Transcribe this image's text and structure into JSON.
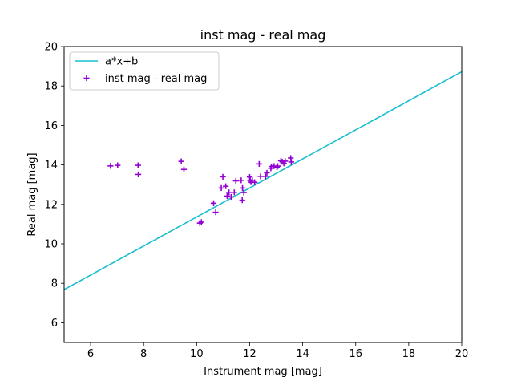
{
  "chart_data": {
    "type": "scatter",
    "title": "inst mag - real mag",
    "xlabel": "Instrument mag [mag]",
    "ylabel": "Real mag [mag]",
    "xlim": [
      5,
      20
    ],
    "ylim": [
      5,
      20
    ],
    "xticks": [
      6,
      8,
      10,
      12,
      14,
      16,
      18,
      20
    ],
    "yticks": [
      6,
      8,
      10,
      12,
      14,
      16,
      18,
      20
    ],
    "grid": false,
    "legend_position": "top-left",
    "series": [
      {
        "name": "a*x+b",
        "kind": "line",
        "color": "#17becf",
        "x": [
          5,
          20
        ],
        "y": [
          7.68,
          18.72
        ]
      },
      {
        "name": "inst mag - real mag",
        "kind": "scatter",
        "marker": "plus",
        "color": "#9400d3",
        "x": [
          6.75,
          7.02,
          7.79,
          7.8,
          9.42,
          9.52,
          10.12,
          10.18,
          10.64,
          10.72,
          10.93,
          10.99,
          11.1,
          11.15,
          11.22,
          11.3,
          11.42,
          11.48,
          11.68,
          11.72,
          11.73,
          11.78,
          12.0,
          12.02,
          12.05,
          12.1,
          12.19,
          12.36,
          12.41,
          12.6,
          12.65,
          12.8,
          12.82,
          12.92,
          13.03,
          13.06,
          13.18,
          13.23,
          13.29,
          13.34,
          13.55,
          13.57
        ],
        "y": [
          13.95,
          13.98,
          13.98,
          13.52,
          14.18,
          13.77,
          11.05,
          11.1,
          12.06,
          11.6,
          12.83,
          13.4,
          12.92,
          12.42,
          12.61,
          12.38,
          12.61,
          13.19,
          13.22,
          12.21,
          12.83,
          12.6,
          13.39,
          13.21,
          13.13,
          13.22,
          13.12,
          14.05,
          13.42,
          13.42,
          13.6,
          13.83,
          13.92,
          13.94,
          13.88,
          13.94,
          14.21,
          14.16,
          14.08,
          14.19,
          14.35,
          14.15
        ]
      }
    ]
  }
}
